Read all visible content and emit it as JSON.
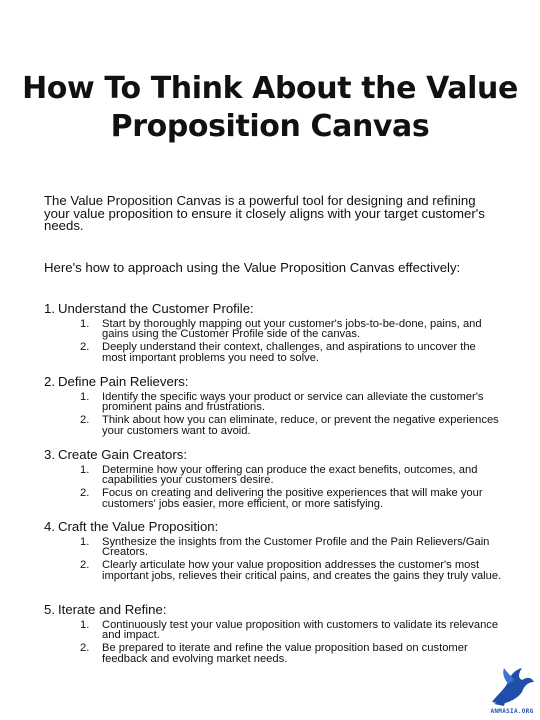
{
  "title": "How To Think About the Value Proposition Canvas",
  "intro": [
    "The Value Proposition Canvas is a powerful tool for designing and refining your value proposition to ensure it closely aligns with your target customer's needs.",
    "Here's how to approach using the Value Proposition Canvas effectively:"
  ],
  "sections": [
    {
      "number": "1.",
      "heading": "Understand the Customer Profile:",
      "items": [
        {
          "number": "1.",
          "text": "Start by thoroughly mapping out your customer's jobs-to-be-done, pains, and gains using the Customer Profile side of the canvas."
        },
        {
          "number": "2.",
          "text": "Deeply understand their context, challenges, and aspirations to uncover the most important problems you need to solve."
        }
      ]
    },
    {
      "number": "2.",
      "heading": "Define Pain Relievers:",
      "items": [
        {
          "number": "1.",
          "text": "Identify the specific ways your product or service can alleviate the customer's prominent pains and frustrations."
        },
        {
          "number": "2.",
          "text": "Think about how you can eliminate, reduce, or prevent the negative experiences your customers want to avoid."
        }
      ]
    },
    {
      "number": "3.",
      "heading": "Create Gain Creators:",
      "items": [
        {
          "number": "1.",
          "text": "Determine how your offering can produce the exact benefits, outcomes, and capabilities your customers desire."
        },
        {
          "number": "2.",
          "text": "Focus on creating and delivering the positive experiences that will make your customers' jobs easier, more efficient, or more satisfying."
        }
      ]
    },
    {
      "number": "4.",
      "heading": "Craft the Value Proposition:",
      "items": [
        {
          "number": "1.",
          "text": "Synthesize the insights from the Customer Profile and the Pain Relievers/Gain Creators."
        },
        {
          "number": "2.",
          "text": "Clearly articulate how your value proposition addresses the customer's most important jobs, relieves their critical pains, and creates the gains they truly value."
        }
      ]
    },
    {
      "number": "5.",
      "heading": "Iterate and Refine:",
      "items": [
        {
          "number": "1.",
          "text": "Continuously test your value proposition with customers to validate its relevance and impact."
        },
        {
          "number": "2.",
          "text": "Be prepared to iterate and refine the value proposition based on customer feedback and evolving market needs."
        }
      ]
    }
  ],
  "logo": {
    "text": "ANMASIA.ORG",
    "icon": "bird-logo-icon",
    "color": "#1f4fa8"
  }
}
